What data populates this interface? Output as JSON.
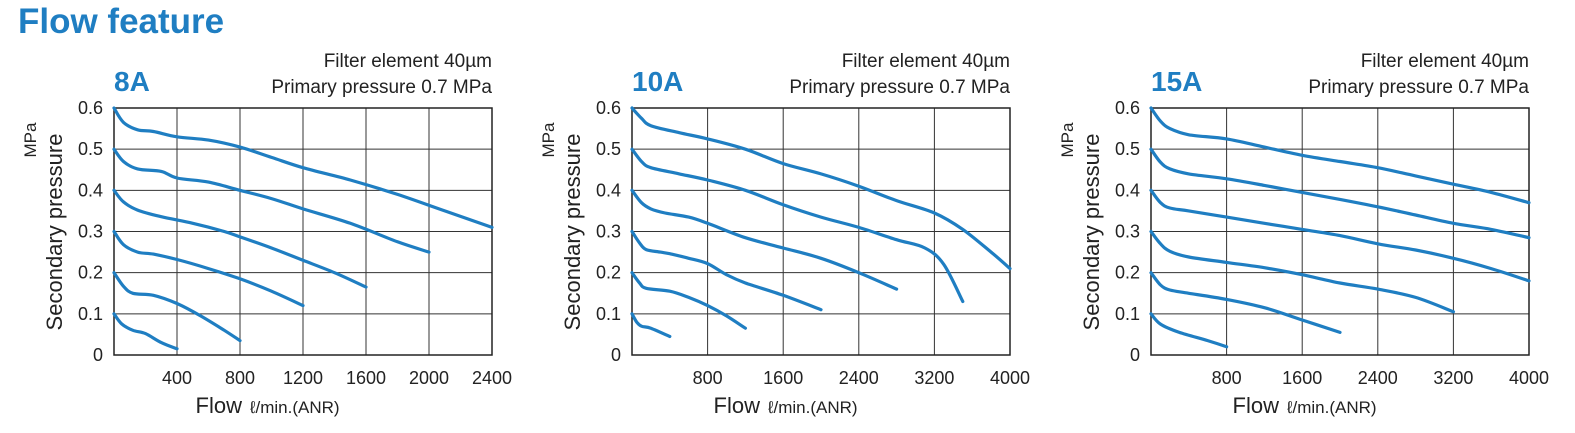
{
  "page": {
    "title": "Flow feature"
  },
  "colors": {
    "accent": "#1f7ec2",
    "curve": "#1f7ec2",
    "grid": "#333333"
  },
  "chart_data": [
    {
      "type": "line",
      "title": "8A",
      "conditions": [
        "Filter element 40µm",
        "Primary pressure 0.7 MPa"
      ],
      "ylabel": "Secondary pressure",
      "yunit": "MPa",
      "xlabel": "Flow",
      "xunit": "ℓ/min.(ANR)",
      "xlim": [
        0,
        2400
      ],
      "ylim": [
        0,
        0.6
      ],
      "xticks": [
        400,
        800,
        1200,
        1600,
        2000,
        2400
      ],
      "xtick_labels": [
        "400",
        "800",
        "1200",
        "1600",
        "2000",
        "2400"
      ],
      "yticks": [
        0,
        0.1,
        0.2,
        0.3,
        0.4,
        0.5,
        0.6
      ],
      "ytick_labels": [
        "0",
        "0.1",
        "0.2",
        "0.3",
        "0.4",
        "0.5",
        "0.6"
      ],
      "grid": true,
      "series": [
        {
          "x": [
            0,
            60,
            150,
            250,
            400,
            600,
            800,
            1000,
            1200,
            1500,
            1800,
            2100,
            2400
          ],
          "y": [
            0.6,
            0.565,
            0.547,
            0.543,
            0.53,
            0.522,
            0.505,
            0.48,
            0.455,
            0.425,
            0.39,
            0.35,
            0.31
          ]
        },
        {
          "x": [
            0,
            60,
            150,
            300,
            400,
            600,
            800,
            1000,
            1200,
            1500,
            1800,
            2000
          ],
          "y": [
            0.5,
            0.47,
            0.452,
            0.446,
            0.43,
            0.42,
            0.4,
            0.38,
            0.355,
            0.32,
            0.275,
            0.25
          ]
        },
        {
          "x": [
            0,
            60,
            150,
            300,
            500,
            700,
            800,
            1000,
            1200,
            1400,
            1600
          ],
          "y": [
            0.4,
            0.372,
            0.352,
            0.336,
            0.32,
            0.3,
            0.287,
            0.26,
            0.23,
            0.2,
            0.165
          ]
        },
        {
          "x": [
            0,
            60,
            150,
            250,
            400,
            600,
            800,
            1000,
            1200
          ],
          "y": [
            0.3,
            0.268,
            0.25,
            0.245,
            0.232,
            0.21,
            0.185,
            0.155,
            0.12
          ]
        },
        {
          "x": [
            0,
            60,
            120,
            250,
            400,
            550,
            700,
            800
          ],
          "y": [
            0.2,
            0.167,
            0.15,
            0.145,
            0.125,
            0.095,
            0.06,
            0.035
          ]
        },
        {
          "x": [
            0,
            50,
            120,
            200,
            300,
            400
          ],
          "y": [
            0.1,
            0.075,
            0.06,
            0.052,
            0.03,
            0.015
          ]
        }
      ]
    },
    {
      "type": "line",
      "title": "10A",
      "conditions": [
        "Filter element 40µm",
        "Primary pressure 0.7 MPa"
      ],
      "ylabel": "Secondary pressure",
      "yunit": "MPa",
      "xlabel": "Flow",
      "xunit": "ℓ/min.(ANR)",
      "xlim": [
        0,
        4000
      ],
      "ylim": [
        0,
        0.6
      ],
      "xticks": [
        800,
        1600,
        2400,
        3200,
        4000
      ],
      "xtick_labels": [
        "800",
        "1600",
        "2400",
        "3200",
        "4000"
      ],
      "yticks": [
        0,
        0.1,
        0.2,
        0.3,
        0.4,
        0.5,
        0.6
      ],
      "ytick_labels": [
        "0",
        "0.1",
        "0.2",
        "0.3",
        "0.4",
        "0.5",
        "0.6"
      ],
      "grid": true,
      "series": [
        {
          "x": [
            0,
            100,
            200,
            500,
            800,
            1200,
            1600,
            2000,
            2400,
            2800,
            3200,
            3500,
            3800,
            4000
          ],
          "y": [
            0.6,
            0.575,
            0.557,
            0.54,
            0.525,
            0.5,
            0.465,
            0.44,
            0.41,
            0.375,
            0.345,
            0.305,
            0.25,
            0.21
          ]
        },
        {
          "x": [
            0,
            100,
            200,
            500,
            800,
            1200,
            1600,
            2000,
            2400,
            2800,
            3100,
            3300,
            3500
          ],
          "y": [
            0.5,
            0.47,
            0.455,
            0.44,
            0.425,
            0.4,
            0.365,
            0.335,
            0.31,
            0.28,
            0.26,
            0.22,
            0.13
          ]
        },
        {
          "x": [
            0,
            100,
            200,
            350,
            600,
            800,
            1200,
            1600,
            2000,
            2400,
            2800
          ],
          "y": [
            0.4,
            0.37,
            0.355,
            0.345,
            0.335,
            0.32,
            0.285,
            0.26,
            0.235,
            0.2,
            0.16
          ]
        },
        {
          "x": [
            0,
            80,
            150,
            300,
            400,
            600,
            800,
            1000,
            1200,
            1600,
            2000
          ],
          "y": [
            0.3,
            0.272,
            0.256,
            0.25,
            0.246,
            0.235,
            0.222,
            0.195,
            0.175,
            0.145,
            0.11
          ]
        },
        {
          "x": [
            0,
            80,
            150,
            400,
            600,
            800,
            1000,
            1200
          ],
          "y": [
            0.2,
            0.175,
            0.162,
            0.155,
            0.14,
            0.12,
            0.095,
            0.065
          ]
        },
        {
          "x": [
            0,
            50,
            100,
            200,
            400
          ],
          "y": [
            0.1,
            0.08,
            0.07,
            0.065,
            0.045
          ]
        }
      ]
    },
    {
      "type": "line",
      "title": "15A",
      "conditions": [
        "Filter element 40µm",
        "Primary pressure 0.7 MPa"
      ],
      "ylabel": "Secondary pressure",
      "yunit": "MPa",
      "xlabel": "Flow",
      "xunit": "ℓ/min.(ANR)",
      "xlim": [
        0,
        4000
      ],
      "ylim": [
        0,
        0.6
      ],
      "xticks": [
        800,
        1600,
        2400,
        3200,
        4000
      ],
      "xtick_labels": [
        "800",
        "1600",
        "2400",
        "3200",
        "4000"
      ],
      "yticks": [
        0,
        0.1,
        0.2,
        0.3,
        0.4,
        0.5,
        0.6
      ],
      "ytick_labels": [
        "0",
        "0.1",
        "0.2",
        "0.3",
        "0.4",
        "0.5",
        "0.6"
      ],
      "grid": true,
      "series": [
        {
          "x": [
            0,
            100,
            200,
            400,
            800,
            1200,
            1600,
            2000,
            2400,
            2800,
            3200,
            3600,
            4000
          ],
          "y": [
            0.6,
            0.568,
            0.55,
            0.535,
            0.525,
            0.505,
            0.485,
            0.47,
            0.455,
            0.435,
            0.415,
            0.395,
            0.37
          ]
        },
        {
          "x": [
            0,
            100,
            200,
            400,
            800,
            1200,
            1600,
            2000,
            2400,
            2800,
            3200,
            3600,
            4000
          ],
          "y": [
            0.5,
            0.468,
            0.452,
            0.44,
            0.428,
            0.412,
            0.395,
            0.378,
            0.36,
            0.34,
            0.32,
            0.305,
            0.285
          ]
        },
        {
          "x": [
            0,
            100,
            200,
            400,
            800,
            1200,
            1600,
            2000,
            2400,
            2800,
            3200,
            3600,
            4000
          ],
          "y": [
            0.4,
            0.37,
            0.357,
            0.35,
            0.335,
            0.32,
            0.305,
            0.29,
            0.27,
            0.255,
            0.235,
            0.21,
            0.18
          ]
        },
        {
          "x": [
            0,
            100,
            200,
            400,
            800,
            1200,
            1600,
            2000,
            2400,
            2800,
            3200
          ],
          "y": [
            0.3,
            0.27,
            0.252,
            0.238,
            0.225,
            0.212,
            0.195,
            0.175,
            0.16,
            0.14,
            0.105
          ]
        },
        {
          "x": [
            0,
            100,
            200,
            400,
            800,
            1200,
            1600,
            2000
          ],
          "y": [
            0.2,
            0.17,
            0.158,
            0.15,
            0.135,
            0.115,
            0.085,
            0.055
          ]
        },
        {
          "x": [
            0,
            100,
            300,
            600,
            800
          ],
          "y": [
            0.1,
            0.075,
            0.055,
            0.035,
            0.02
          ]
        }
      ]
    }
  ]
}
